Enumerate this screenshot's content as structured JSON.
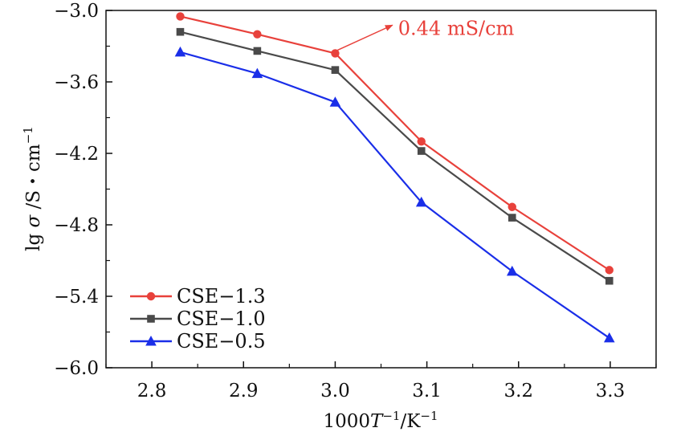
{
  "chart_data": {
    "type": "line",
    "xlabel_parts": [
      "1000",
      "T",
      "−1",
      "/K",
      "−1"
    ],
    "ylabel_parts": [
      "lg ",
      "σ",
      " /S・cm",
      "−1"
    ],
    "xlim": [
      2.75,
      3.35
    ],
    "ylim": [
      -6.0,
      -3.0
    ],
    "x_ticks": [
      2.8,
      2.9,
      3.0,
      3.1,
      3.2,
      3.3
    ],
    "x_tick_labels": [
      "2.8",
      "2.9",
      "3.0",
      "3.1",
      "3.2",
      "3.3"
    ],
    "y_ticks": [
      -3.0,
      -3.6,
      -4.2,
      -4.8,
      -5.4,
      -6.0
    ],
    "y_tick_labels": [
      "−3.0",
      "−3.6",
      "−4.2",
      "−4.8",
      "−5.4",
      "−6.0"
    ],
    "grid": false,
    "legend_position": "bottom-left",
    "x": [
      2.831,
      2.915,
      3.0,
      3.094,
      3.193,
      3.299
    ],
    "series": [
      {
        "name": "CSE−1.3",
        "marker": "circle",
        "color": "#e8413b",
        "values": [
          -3.05,
          -3.2,
          -3.36,
          -4.1,
          -4.65,
          -5.18
        ]
      },
      {
        "name": "CSE−1.0",
        "marker": "square",
        "color": "#4a4a4a",
        "values": [
          -3.18,
          -3.34,
          -3.5,
          -4.18,
          -4.74,
          -5.27
        ]
      },
      {
        "name": "CSE−0.5",
        "marker": "triangle",
        "color": "#1a2ee8",
        "values": [
          -3.35,
          -3.53,
          -3.77,
          -4.61,
          -5.19,
          -5.75
        ]
      }
    ],
    "annotation": {
      "text": "0.44 mS/cm",
      "color": "#e8413b",
      "point_x": 3.0,
      "point_y": -3.36,
      "text_x": 3.066,
      "text_y": -3.15
    }
  }
}
